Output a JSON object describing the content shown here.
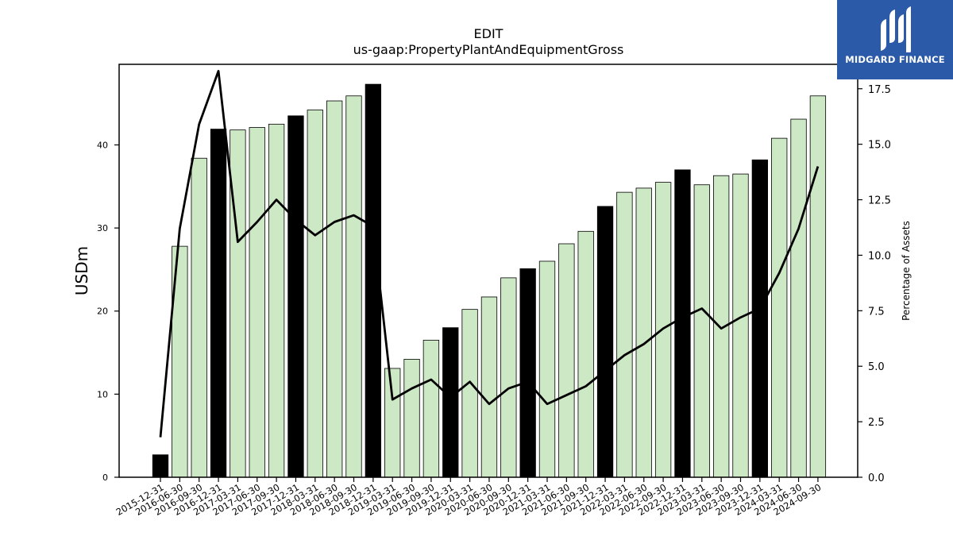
{
  "logo": {
    "name": "MIDGARD FINANCE"
  },
  "chart_data": {
    "type": "bar",
    "title": "EDIT",
    "subtitle": "us-gaap:PropertyPlantAndEquipmentGross",
    "ylabel": "USDm",
    "y2label": "Percentage of Assets",
    "ylim": [
      0,
      49.7
    ],
    "y2lim": [
      0,
      18.6
    ],
    "yticks": [
      0,
      10,
      20,
      30,
      40
    ],
    "y2ticks": [
      0.0,
      2.5,
      5.0,
      7.5,
      10.0,
      12.5,
      15.0,
      17.5
    ],
    "y2tick_labels": [
      "0.0",
      "2.5",
      "5.0",
      "7.5",
      "10.0",
      "12.5",
      "15.0",
      "17.5"
    ],
    "categories": [
      "2015-12-31",
      "2016-06-30",
      "2016-09-30",
      "2016-12-31",
      "2017-03-31",
      "2017-06-30",
      "2017-09-30",
      "2017-12-31",
      "2018-03-31",
      "2018-06-30",
      "2018-09-30",
      "2018-12-31",
      "2019-03-31",
      "2019-06-30",
      "2019-09-30",
      "2019-12-31",
      "2020-03-31",
      "2020-06-30",
      "2020-09-30",
      "2020-12-31",
      "2021-03-31",
      "2021-06-30",
      "2021-09-30",
      "2021-12-31",
      "2022-03-31",
      "2022-06-30",
      "2022-09-30",
      "2022-12-31",
      "2023-03-31",
      "2023-06-30",
      "2023-09-30",
      "2023-12-31",
      "2024-03-31",
      "2024-06-30",
      "2024-09-30"
    ],
    "series": [
      {
        "type": "bar",
        "values": [
          2.7,
          27.8,
          38.4,
          41.9,
          41.8,
          42.1,
          42.5,
          43.5,
          44.2,
          45.3,
          45.9,
          47.3,
          13.1,
          14.2,
          16.5,
          18.0,
          20.2,
          21.7,
          24.0,
          25.1,
          26.0,
          28.1,
          29.6,
          32.6,
          34.3,
          34.8,
          35.5,
          37.0,
          35.2,
          36.3,
          36.5,
          38.2,
          40.8,
          43.1,
          45.9
        ],
        "year_end": [
          true,
          false,
          false,
          true,
          false,
          false,
          false,
          true,
          false,
          false,
          false,
          true,
          false,
          false,
          false,
          true,
          false,
          false,
          false,
          true,
          false,
          false,
          false,
          true,
          false,
          false,
          false,
          true,
          false,
          false,
          false,
          true,
          false,
          false,
          false
        ]
      },
      {
        "type": "line",
        "axis": "right",
        "values": [
          1.8,
          11.2,
          15.9,
          18.3,
          10.6,
          11.5,
          12.5,
          11.6,
          10.9,
          11.5,
          11.8,
          11.3,
          3.5,
          4.0,
          4.4,
          3.6,
          4.3,
          3.3,
          4.0,
          4.3,
          3.3,
          3.7,
          4.1,
          4.8,
          5.5,
          6.0,
          6.7,
          7.2,
          7.6,
          6.7,
          7.2,
          7.6,
          9.2,
          11.2,
          14.0
        ]
      }
    ],
    "colors": {
      "bar": "#cde8c4",
      "bar_year_end": "#000000",
      "line": "#000000",
      "logo_bg": "#2b5aa8"
    },
    "legend": "none",
    "grid": false
  }
}
